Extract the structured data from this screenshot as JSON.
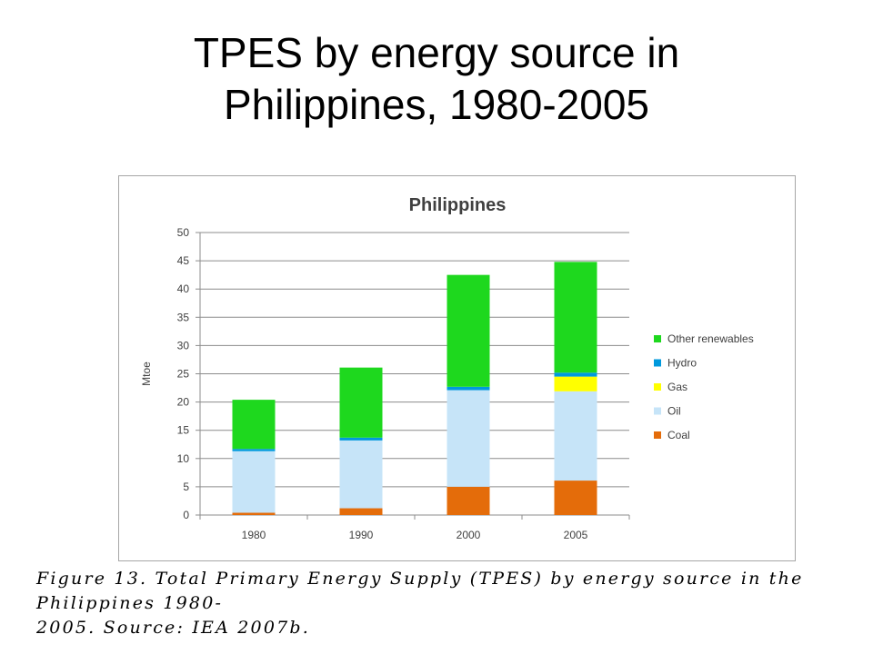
{
  "slide": {
    "title_line1": "TPES by energy source in",
    "title_line2": "Philippines, 1980-2005"
  },
  "caption": {
    "line1": "Figure 13. Total Primary Energy Supply (TPES) by energy source in the Philippines 1980-",
    "line2": "2005. Source: IEA 2007b."
  },
  "chart_data": {
    "type": "bar",
    "stacked": true,
    "title": "Philippines",
    "xlabel": "",
    "ylabel": "Mtoe",
    "categories": [
      "1980",
      "1990",
      "2000",
      "2005"
    ],
    "ylim": [
      0,
      50
    ],
    "yticks": [
      0,
      5,
      10,
      15,
      20,
      25,
      30,
      35,
      40,
      45,
      50
    ],
    "grid": true,
    "legend_position": "right",
    "series": [
      {
        "name": "Coal",
        "color": "#e46c0a",
        "values": [
          0.4,
          1.2,
          5.0,
          6.1
        ]
      },
      {
        "name": "Oil",
        "color": "#c6e4f8",
        "values": [
          10.9,
          12.0,
          17.1,
          15.8
        ]
      },
      {
        "name": "Gas",
        "color": "#ffff00",
        "values": [
          0.0,
          0.0,
          0.0,
          2.6
        ]
      },
      {
        "name": "Hydro",
        "color": "#0099dd",
        "values": [
          0.4,
          0.5,
          0.6,
          0.7
        ]
      },
      {
        "name": "Other renewables",
        "color": "#1ed81e",
        "values": [
          8.7,
          12.4,
          19.8,
          19.6
        ]
      }
    ]
  }
}
